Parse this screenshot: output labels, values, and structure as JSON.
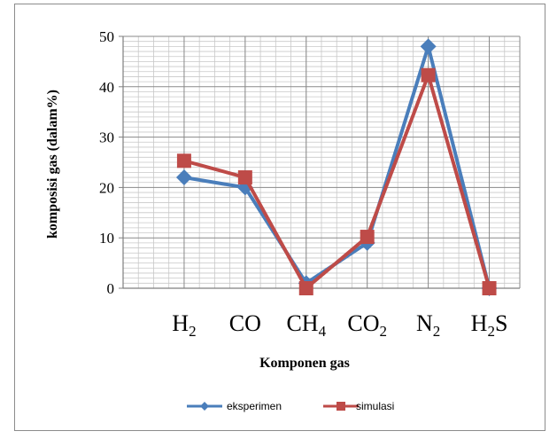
{
  "chart_data": {
    "type": "line",
    "categories": [
      "H",
      "CO",
      "CH",
      "CO",
      "N",
      "H"
    ],
    "category_parts": [
      {
        "base": "H",
        "sub": "2",
        "tail": ""
      },
      {
        "base": "CO",
        "sub": "",
        "tail": ""
      },
      {
        "base": "CH",
        "sub": "4",
        "tail": ""
      },
      {
        "base": "CO",
        "sub": "2",
        "tail": ""
      },
      {
        "base": "N",
        "sub": "2",
        "tail": ""
      },
      {
        "base": "H",
        "sub": "2",
        "tail": "S"
      }
    ],
    "series": [
      {
        "name": "eksperimen",
        "values": [
          22,
          20,
          1,
          9,
          48,
          0
        ],
        "color": "#4a7ebb",
        "marker": "diamond"
      },
      {
        "name": "simulasi",
        "values": [
          25.3,
          22,
          0,
          10.2,
          42.3,
          0
        ],
        "color": "#be4b48",
        "marker": "square"
      }
    ],
    "xlabel": "Komponen gas",
    "ylabel": "komposisi gas (dalam%)",
    "ylim": [
      0,
      50
    ],
    "yticks": [
      0,
      10,
      20,
      30,
      40,
      50
    ],
    "grid": true,
    "legend_position": "bottom"
  }
}
